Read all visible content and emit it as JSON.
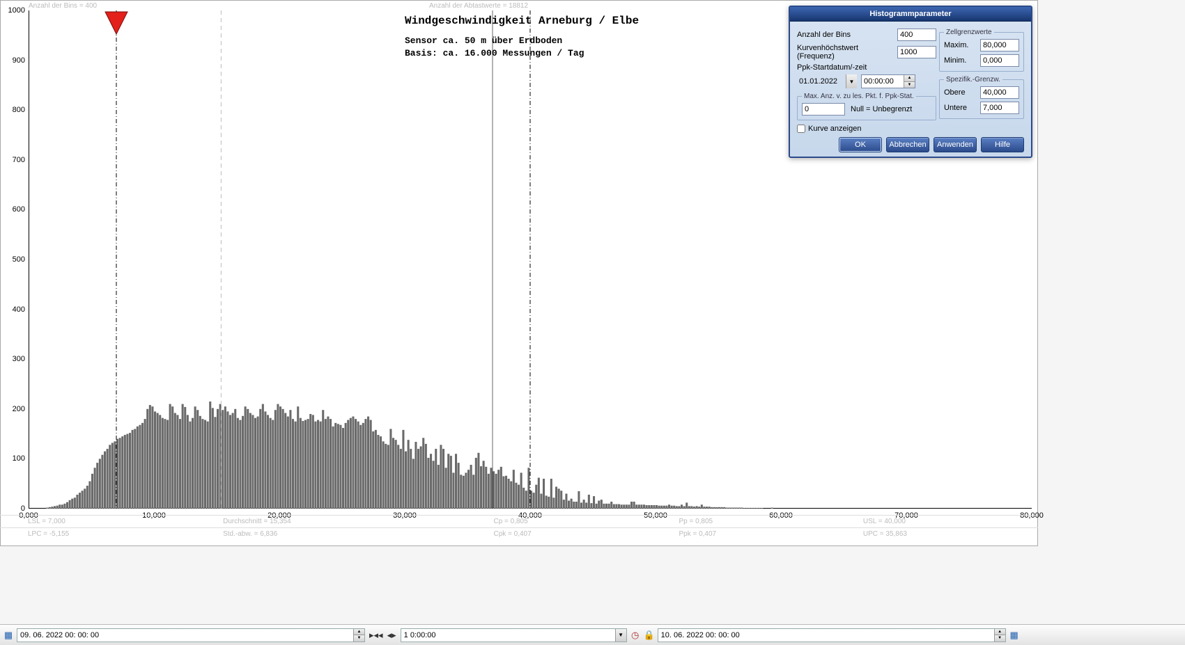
{
  "chart": {
    "top_left_label": "Anzahl der Bins =   400",
    "top_right_label": "Anzahl der Abtastwerte = 18812",
    "title": "Windgeschwindigkeit  Arneburg / Elbe",
    "subtitle1": "Sensor ca. 50 m über Erdboden",
    "subtitle2": "Basis: ca. 16.000 Messungen / Tag",
    "y_ticks": [
      "0",
      "100",
      "200",
      "300",
      "400",
      "500",
      "600",
      "700",
      "800",
      "900",
      "1000"
    ],
    "y_max": 1000,
    "x_ticks": [
      "0,000",
      "10,000",
      "20,000",
      "30,000",
      "40,000",
      "50,000",
      "60,000",
      "70,000",
      "80,000"
    ],
    "x_max": 80,
    "marker_x": 7.0,
    "usl_x": 40.0,
    "mean_x": 15.354,
    "lsl_x": 7.0,
    "bars": [
      0,
      0,
      0,
      0,
      0,
      0,
      0,
      2,
      3,
      4,
      5,
      6,
      8,
      8,
      10,
      13,
      17,
      20,
      22,
      28,
      32,
      36,
      40,
      46,
      55,
      70,
      82,
      92,
      100,
      108,
      115,
      120,
      128,
      132,
      135,
      140,
      142,
      145,
      148,
      150,
      152,
      158,
      160,
      165,
      168,
      172,
      180,
      200,
      208,
      205,
      195,
      192,
      188,
      182,
      180,
      178,
      210,
      205,
      192,
      188,
      180,
      210,
      204,
      188,
      175,
      182,
      205,
      198,
      186,
      180,
      178,
      175,
      215,
      202,
      184,
      200,
      210,
      198,
      205,
      195,
      188,
      192,
      200,
      182,
      178,
      186,
      205,
      200,
      192,
      188,
      182,
      185,
      200,
      210,
      195,
      188,
      182,
      178,
      198,
      210,
      205,
      200,
      192,
      185,
      198,
      180,
      175,
      205,
      182,
      176,
      178,
      180,
      190,
      188,
      175,
      178,
      175,
      198,
      180,
      185,
      180,
      165,
      172,
      170,
      168,
      162,
      172,
      178,
      182,
      185,
      180,
      175,
      168,
      172,
      180,
      185,
      178,
      155,
      158,
      148,
      145,
      135,
      130,
      128,
      160,
      142,
      138,
      128,
      120,
      158,
      115,
      138,
      120,
      100,
      134,
      120,
      125,
      142,
      130,
      102,
      110,
      96,
      120,
      88,
      128,
      120,
      82,
      110,
      106,
      72,
      110,
      92,
      68,
      66,
      72,
      78,
      88,
      68,
      102,
      112,
      85,
      96,
      84,
      70,
      82,
      75,
      70,
      78,
      84,
      65,
      66,
      60,
      55,
      78,
      52,
      48,
      72,
      42,
      36,
      82,
      36,
      32,
      48,
      62,
      30,
      60,
      26,
      24,
      60,
      22,
      44,
      40,
      36,
      18,
      30,
      16,
      20,
      14,
      14,
      35,
      12,
      18,
      12,
      28,
      11,
      25,
      10,
      16,
      18,
      10,
      10,
      10,
      14,
      9,
      9,
      9,
      8,
      8,
      8,
      8,
      14,
      14,
      8,
      8,
      8,
      8,
      7,
      7,
      7,
      7,
      7,
      6,
      6,
      6,
      6,
      8,
      6,
      6,
      5,
      5,
      8,
      5,
      12,
      5,
      5,
      4,
      5,
      4,
      8,
      4,
      4,
      4,
      3,
      3,
      3,
      3,
      3,
      3,
      2,
      2,
      2,
      2,
      2,
      2,
      2,
      1,
      1,
      1,
      1,
      1,
      1,
      1,
      1,
      0,
      0,
      0,
      2,
      0,
      0,
      0,
      0,
      0,
      0,
      0,
      0,
      0,
      0,
      0,
      0,
      0,
      0,
      0,
      0,
      0,
      0,
      0,
      0,
      0,
      0,
      0,
      0,
      0,
      0,
      0,
      0,
      0,
      0,
      0,
      0,
      0,
      0,
      0,
      0,
      0,
      0,
      0,
      0,
      0,
      0,
      0,
      0,
      0,
      0,
      0,
      0,
      0,
      0,
      0,
      0,
      0,
      0,
      0,
      0,
      0,
      0,
      0,
      0,
      0,
      0,
      0,
      0,
      0,
      0,
      0,
      0,
      0,
      0,
      0,
      0,
      0,
      0,
      0,
      0,
      0,
      0,
      0,
      0,
      0,
      0,
      0,
      0,
      0,
      0,
      0,
      0,
      0,
      0,
      0,
      0,
      0,
      0,
      0,
      0,
      0,
      0,
      0,
      0,
      0,
      0,
      0
    ]
  },
  "stats": {
    "lsl": "LSL = 7,000",
    "lpc": "LPC = -5,155",
    "avg": "Durchschnitt = 15,354",
    "std": "Std.-abw. = 6,836",
    "cp": "Cp = 0,805",
    "cpk": "Cpk = 0,407",
    "pp": "Pp = 0,805",
    "ppk": "Ppk = 0,407",
    "usl": "USL = 40,000",
    "upc": "UPC = 35,863"
  },
  "dialog": {
    "title": "Histogrammparameter",
    "bins_label": "Anzahl der Bins",
    "bins_value": "400",
    "freq_label": "Kurvenhöchstwert (Frequenz)",
    "freq_value": "1000",
    "ppk_label": "Ppk-Startdatum/-zeit",
    "date_value": "01.01.2022",
    "time_value": "00:00:00",
    "maxpts_legend": "Max. Anz. v. zu les. Pkt. f. Ppk-Stat.",
    "maxpts_value": "0",
    "maxpts_note": "Null = Unbegrenzt",
    "curve_label": "Kurve anzeigen",
    "cell_legend": "Zellgrenzwerte",
    "cell_max_label": "Maxim.",
    "cell_max_value": "80,000",
    "cell_min_label": "Minim.",
    "cell_min_value": "0,000",
    "spec_legend": "Spezifik.-Grenzw.",
    "spec_upper_label": "Obere",
    "spec_upper_value": "40,000",
    "spec_lower_label": "Untere",
    "spec_lower_value": "7,000",
    "btn_ok": "OK",
    "btn_cancel": "Abbrechen",
    "btn_apply": "Anwenden",
    "btn_help": "Hilfe"
  },
  "bottombar": {
    "start_time": "09. 06. 2022   00: 00: 00",
    "duration": "1  0:00:00",
    "end_time": "10. 06. 2022   00: 00: 00"
  }
}
